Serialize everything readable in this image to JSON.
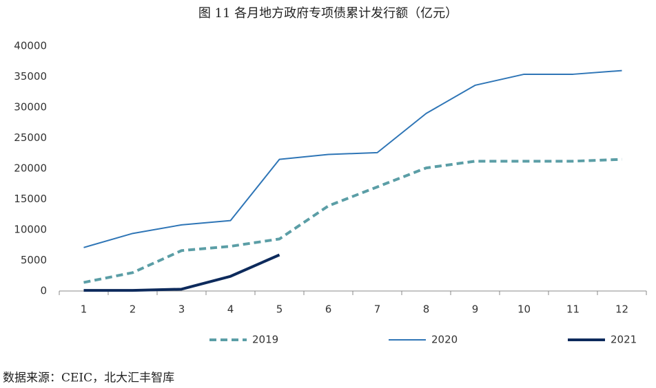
{
  "chart_data": {
    "type": "line",
    "title": "图 11 各月地方政府专项债累计发行额（亿元）",
    "source": "数据来源：CEIC，北大汇丰智库",
    "categories": [
      "1",
      "2",
      "3",
      "4",
      "5",
      "6",
      "7",
      "8",
      "9",
      "10",
      "11",
      "12"
    ],
    "series": [
      {
        "name": "2019",
        "color": "#5b9ea6",
        "line_style": "dashed",
        "values": [
          1400,
          3000,
          6600,
          7300,
          8500,
          13900,
          17000,
          20100,
          21200,
          21200,
          21200,
          21500
        ]
      },
      {
        "name": "2020",
        "color": "#2e75b6",
        "line_style": "solid",
        "values": [
          7100,
          9400,
          10800,
          11500,
          21500,
          22300,
          22600,
          29000,
          33600,
          35400,
          35400,
          36000
        ]
      },
      {
        "name": "2021",
        "color": "#0d2a5c",
        "line_style": "bold",
        "values": [
          100,
          100,
          300,
          2400,
          5900,
          null,
          null,
          null,
          null,
          null,
          null,
          null
        ]
      }
    ],
    "ylim": [
      0,
      40000
    ],
    "yticks": [
      0,
      5000,
      10000,
      15000,
      20000,
      25000,
      30000,
      35000,
      40000
    ],
    "grid": false,
    "legend": "bottom"
  }
}
